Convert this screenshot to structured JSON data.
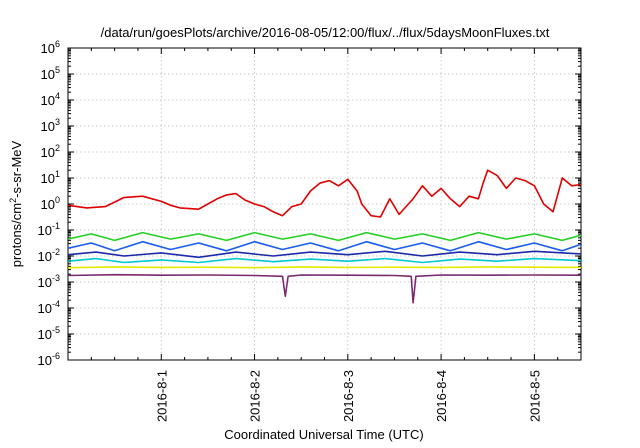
{
  "chart_data": {
    "type": "line",
    "title": "/data/run/goesPlots/archive/2016-08-05/12:00/flux/../flux/5daysMoonFluxes.txt",
    "xlabel": "Coordinated Universal Time (UTC)",
    "ylabel_prefix": "protons/cm",
    "ylabel_sup": "2",
    "ylabel_suffix": "-s-sr-MeV",
    "yscale": "log",
    "ylim_exp": [
      -6,
      6
    ],
    "xlim": [
      0,
      5.5
    ],
    "grid": true,
    "x_ticks": [
      {
        "pos": 1,
        "label": "2016-8-1"
      },
      {
        "pos": 2,
        "label": "2016-8-2"
      },
      {
        "pos": 3,
        "label": "2016-8-3"
      },
      {
        "pos": 4,
        "label": "2016-8-4"
      },
      {
        "pos": 5,
        "label": "2016-8-5"
      }
    ],
    "y_ticks": [
      {
        "exp": 6,
        "base": "10",
        "sup": "6"
      },
      {
        "exp": 5,
        "base": "10",
        "sup": "5"
      },
      {
        "exp": 4,
        "base": "10",
        "sup": "4"
      },
      {
        "exp": 3,
        "base": "10",
        "sup": "3"
      },
      {
        "exp": 2,
        "base": "10",
        "sup": "2"
      },
      {
        "exp": 1,
        "base": "10",
        "sup": "1"
      },
      {
        "exp": 0,
        "base": "10",
        "sup": "0"
      },
      {
        "exp": -1,
        "base": "10",
        "sup": "-1"
      },
      {
        "exp": -2,
        "base": "10",
        "sup": "-2"
      },
      {
        "exp": -3,
        "base": "10",
        "sup": "-3"
      },
      {
        "exp": -4,
        "base": "10",
        "sup": "-4"
      },
      {
        "exp": -5,
        "base": "10",
        "sup": "-5"
      },
      {
        "exp": -6,
        "base": "10",
        "sup": "-6"
      }
    ],
    "series": [
      {
        "color": "#7a2a6e",
        "values": [
          [
            0.0,
            -2.75
          ],
          [
            0.5,
            -2.72
          ],
          [
            1.0,
            -2.74
          ],
          [
            1.5,
            -2.73
          ],
          [
            2.0,
            -2.75
          ],
          [
            2.3,
            -2.78
          ],
          [
            2.33,
            -3.55
          ],
          [
            2.36,
            -2.78
          ],
          [
            2.5,
            -2.73
          ],
          [
            3.0,
            -2.74
          ],
          [
            3.5,
            -2.75
          ],
          [
            3.68,
            -2.78
          ],
          [
            3.7,
            -3.8
          ],
          [
            3.73,
            -2.78
          ],
          [
            4.0,
            -2.73
          ],
          [
            4.5,
            -2.74
          ],
          [
            5.0,
            -2.73
          ],
          [
            5.5,
            -2.74
          ]
        ]
      },
      {
        "color": "#e8e800",
        "values": [
          [
            0.0,
            -2.45
          ],
          [
            0.5,
            -2.42
          ],
          [
            1.0,
            -2.44
          ],
          [
            1.5,
            -2.43
          ],
          [
            2.0,
            -2.45
          ],
          [
            2.5,
            -2.42
          ],
          [
            3.0,
            -2.44
          ],
          [
            3.5,
            -2.43
          ],
          [
            4.0,
            -2.44
          ],
          [
            4.5,
            -2.42
          ],
          [
            5.0,
            -2.43
          ],
          [
            5.5,
            -2.44
          ]
        ]
      },
      {
        "color": "#00c8d0",
        "values": [
          [
            0.0,
            -2.2
          ],
          [
            0.3,
            -2.1
          ],
          [
            0.6,
            -2.25
          ],
          [
            1.0,
            -2.15
          ],
          [
            1.4,
            -2.25
          ],
          [
            1.8,
            -2.1
          ],
          [
            2.2,
            -2.22
          ],
          [
            2.6,
            -2.12
          ],
          [
            3.0,
            -2.2
          ],
          [
            3.4,
            -2.1
          ],
          [
            3.8,
            -2.25
          ],
          [
            4.2,
            -2.12
          ],
          [
            4.6,
            -2.2
          ],
          [
            5.0,
            -2.1
          ],
          [
            5.5,
            -2.18
          ]
        ]
      },
      {
        "color": "#1a2aa8",
        "values": [
          [
            0.0,
            -1.95
          ],
          [
            0.3,
            -1.85
          ],
          [
            0.6,
            -2.0
          ],
          [
            1.0,
            -1.88
          ],
          [
            1.4,
            -2.05
          ],
          [
            1.8,
            -1.85
          ],
          [
            2.2,
            -2.0
          ],
          [
            2.6,
            -1.85
          ],
          [
            3.0,
            -1.95
          ],
          [
            3.4,
            -1.82
          ],
          [
            3.8,
            -2.0
          ],
          [
            4.2,
            -1.85
          ],
          [
            4.6,
            -1.95
          ],
          [
            5.0,
            -1.82
          ],
          [
            5.5,
            -1.92
          ]
        ]
      },
      {
        "color": "#1a5cf0",
        "values": [
          [
            0.0,
            -1.7
          ],
          [
            0.25,
            -1.5
          ],
          [
            0.5,
            -1.8
          ],
          [
            0.8,
            -1.45
          ],
          [
            1.1,
            -1.75
          ],
          [
            1.4,
            -1.5
          ],
          [
            1.7,
            -1.8
          ],
          [
            2.0,
            -1.45
          ],
          [
            2.3,
            -1.75
          ],
          [
            2.6,
            -1.5
          ],
          [
            2.9,
            -1.8
          ],
          [
            3.2,
            -1.45
          ],
          [
            3.5,
            -1.75
          ],
          [
            3.8,
            -1.5
          ],
          [
            4.1,
            -1.8
          ],
          [
            4.4,
            -1.45
          ],
          [
            4.7,
            -1.75
          ],
          [
            5.0,
            -1.5
          ],
          [
            5.3,
            -1.8
          ],
          [
            5.5,
            -1.55
          ]
        ]
      },
      {
        "color": "#22d022",
        "values": [
          [
            0.0,
            -1.35
          ],
          [
            0.25,
            -1.15
          ],
          [
            0.5,
            -1.4
          ],
          [
            0.8,
            -1.1
          ],
          [
            1.1,
            -1.35
          ],
          [
            1.4,
            -1.15
          ],
          [
            1.7,
            -1.4
          ],
          [
            2.0,
            -1.1
          ],
          [
            2.3,
            -1.35
          ],
          [
            2.6,
            -1.15
          ],
          [
            2.9,
            -1.4
          ],
          [
            3.2,
            -1.1
          ],
          [
            3.5,
            -1.35
          ],
          [
            3.8,
            -1.15
          ],
          [
            4.1,
            -1.4
          ],
          [
            4.4,
            -1.1
          ],
          [
            4.7,
            -1.35
          ],
          [
            5.0,
            -1.15
          ],
          [
            5.3,
            -1.4
          ],
          [
            5.5,
            -1.2
          ]
        ]
      },
      {
        "color": "#e00000",
        "values": [
          [
            0.0,
            -0.05
          ],
          [
            0.2,
            -0.15
          ],
          [
            0.4,
            -0.1
          ],
          [
            0.6,
            0.25
          ],
          [
            0.8,
            0.3
          ],
          [
            1.0,
            0.1
          ],
          [
            1.1,
            -0.05
          ],
          [
            1.2,
            -0.15
          ],
          [
            1.4,
            -0.2
          ],
          [
            1.5,
            0.0
          ],
          [
            1.6,
            0.2
          ],
          [
            1.7,
            0.35
          ],
          [
            1.8,
            0.4
          ],
          [
            1.9,
            0.15
          ],
          [
            2.0,
            0.0
          ],
          [
            2.1,
            -0.1
          ],
          [
            2.2,
            -0.3
          ],
          [
            2.3,
            -0.45
          ],
          [
            2.4,
            -0.1
          ],
          [
            2.5,
            0.0
          ],
          [
            2.6,
            0.5
          ],
          [
            2.7,
            0.8
          ],
          [
            2.8,
            0.9
          ],
          [
            2.9,
            0.7
          ],
          [
            3.0,
            0.95
          ],
          [
            3.1,
            0.5
          ],
          [
            3.15,
            0.0
          ],
          [
            3.25,
            -0.45
          ],
          [
            3.35,
            -0.5
          ],
          [
            3.45,
            0.2
          ],
          [
            3.55,
            -0.4
          ],
          [
            3.65,
            0.0
          ],
          [
            3.7,
            0.2
          ],
          [
            3.8,
            0.7
          ],
          [
            3.9,
            0.3
          ],
          [
            4.0,
            0.6
          ],
          [
            4.1,
            0.2
          ],
          [
            4.2,
            -0.1
          ],
          [
            4.3,
            0.3
          ],
          [
            4.4,
            0.2
          ],
          [
            4.45,
            0.8
          ],
          [
            4.5,
            1.3
          ],
          [
            4.6,
            1.1
          ],
          [
            4.7,
            0.6
          ],
          [
            4.8,
            1.0
          ],
          [
            4.9,
            0.9
          ],
          [
            5.0,
            0.7
          ],
          [
            5.1,
            0.0
          ],
          [
            5.2,
            -0.3
          ],
          [
            5.3,
            1.0
          ],
          [
            5.4,
            0.7
          ],
          [
            5.5,
            0.75
          ]
        ]
      }
    ]
  }
}
